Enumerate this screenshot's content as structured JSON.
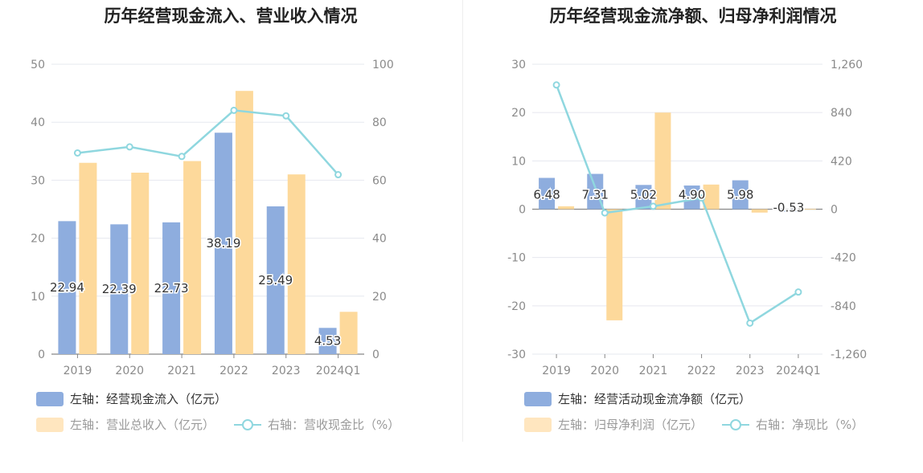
{
  "chart_data": [
    {
      "type": "bar",
      "title": "历年经营现金流入、营业收入情况",
      "categories": [
        "2019",
        "2020",
        "2021",
        "2022",
        "2023",
        "2024Q1"
      ],
      "y_left": {
        "min": 0,
        "max": 50,
        "ticks": [
          "0",
          "10",
          "20",
          "30",
          "40",
          "50"
        ]
      },
      "y_right": {
        "min": 0,
        "max": 100,
        "ticks": [
          "0",
          "20",
          "40",
          "60",
          "80",
          "100"
        ]
      },
      "series": [
        {
          "name": "左轴：经营现金流入（亿元）",
          "axis": "left",
          "kind": "bar",
          "color": "#8eadde",
          "values": [
            22.94,
            22.39,
            22.73,
            38.19,
            25.49,
            4.53
          ],
          "labels": [
            "22.94",
            "22.39",
            "22.73",
            "38.19",
            "25.49",
            "4.53"
          ]
        },
        {
          "name": "左轴：营业总收入（亿元）",
          "axis": "left",
          "kind": "bar",
          "color": "#fdd99b",
          "values": [
            33.0,
            31.3,
            33.3,
            45.4,
            31.0,
            7.3
          ]
        },
        {
          "name": "右轴：营收现金比（%）",
          "axis": "right",
          "kind": "line",
          "color": "#8fd7df",
          "values": [
            69.4,
            71.5,
            68.2,
            84.1,
            82.2,
            61.9
          ]
        }
      ],
      "legend": [
        {
          "label": "左轴：经营现金流入（亿元）",
          "color": "#8eadde",
          "shape": "bar"
        },
        {
          "label": "左轴：营业总收入（亿元）",
          "color": "#ffe6bf",
          "shape": "bar"
        },
        {
          "label": "右轴：营收现金比（%）",
          "color": "#8fd7df",
          "shape": "line"
        }
      ]
    },
    {
      "type": "bar",
      "title": "历年经营现金流净额、归母净利润情况",
      "categories": [
        "2019",
        "2020",
        "2021",
        "2022",
        "2023",
        "2024Q1"
      ],
      "y_left": {
        "min": -30,
        "max": 30,
        "ticks": [
          "-30",
          "-20",
          "-10",
          "0",
          "10",
          "20",
          "30"
        ]
      },
      "y_right": {
        "min": -1260,
        "max": 1260,
        "ticks": [
          "-1,260",
          "-840",
          "-420",
          "0",
          "420",
          "840",
          "1,260"
        ]
      },
      "series": [
        {
          "name": "左轴：经营活动现金流净额（亿元）",
          "axis": "left",
          "kind": "bar",
          "color": "#8eadde",
          "values": [
            6.48,
            7.31,
            5.02,
            4.9,
            5.98,
            -0.53
          ],
          "labels": [
            "6.48",
            "7.31",
            "5.02",
            "4.90",
            "5.98",
            "-0.53"
          ]
        },
        {
          "name": "左轴：归母净利润（亿元）",
          "axis": "left",
          "kind": "bar",
          "color": "#fdd99b",
          "values": [
            0.6,
            -23.0,
            20.0,
            5.1,
            -0.7,
            0.05
          ]
        },
        {
          "name": "右轴：净现比（%）",
          "axis": "right",
          "kind": "line",
          "color": "#8fd7df",
          "values": [
            1080,
            -32,
            25,
            98,
            -990,
            -720
          ]
        }
      ],
      "legend": [
        {
          "label": "左轴：经营活动现金流净额（亿元）",
          "color": "#8eadde",
          "shape": "bar"
        },
        {
          "label": "左轴：归母净利润（亿元）",
          "color": "#ffe6bf",
          "shape": "bar"
        },
        {
          "label": "右轴：净现比（%）",
          "color": "#8fd7df",
          "shape": "line"
        }
      ]
    }
  ]
}
